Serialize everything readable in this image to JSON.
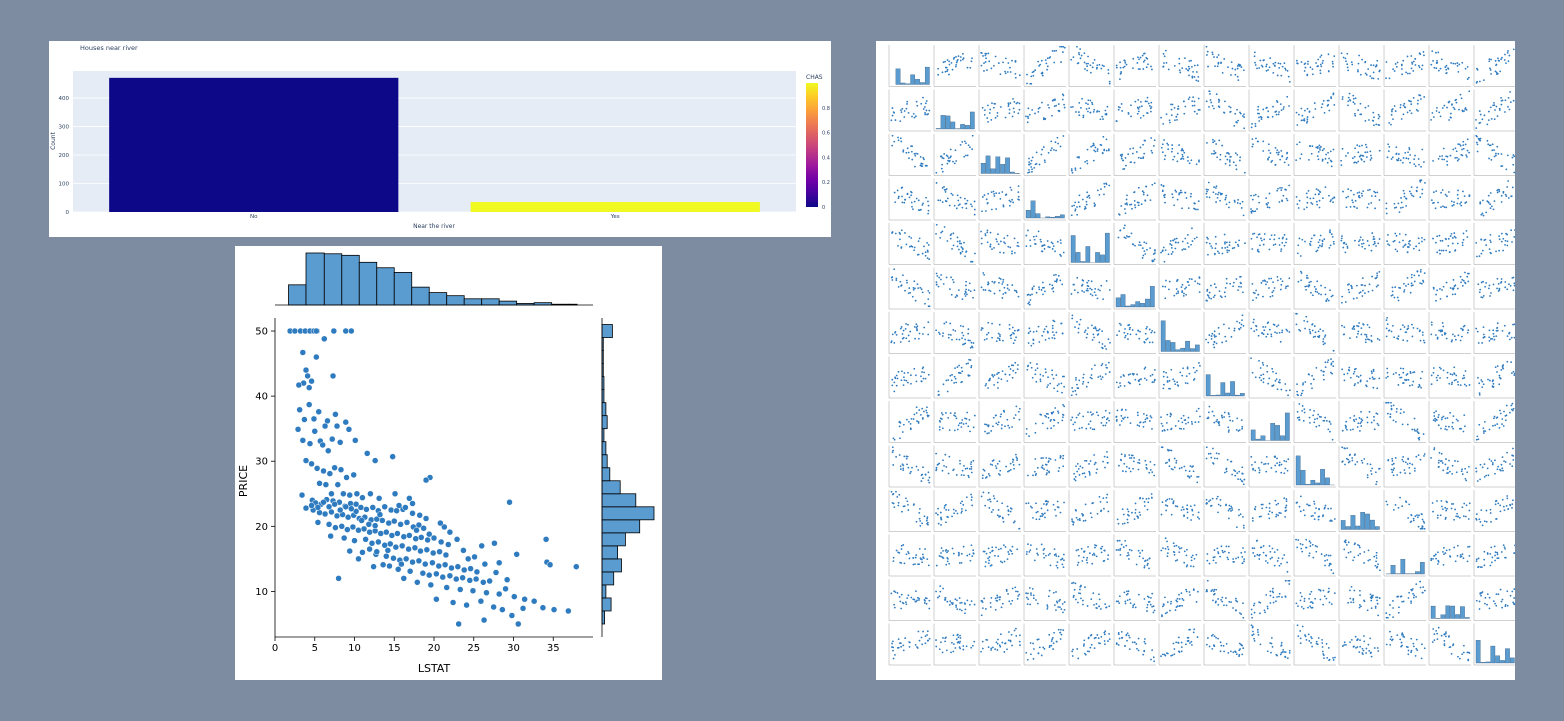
{
  "colors": {
    "page_background": "#7d8ca0",
    "bar_plot_background": "#e5ecf6",
    "bar_no": "#0d0887",
    "bar_yes": "#f0f921",
    "scatter_point": "#2f7bbf",
    "histogram_fill": "#5a9bd0"
  },
  "chart_data": [
    {
      "type": "bar",
      "title": "Houses near river",
      "xlabel": "Near the river",
      "ylabel": "Count",
      "categories": [
        "No",
        "Yes"
      ],
      "values": [
        471,
        35
      ],
      "color_values": [
        0,
        1
      ],
      "ylim": [
        0,
        495
      ],
      "yticks": [
        0,
        100,
        200,
        300,
        400
      ],
      "colorbar": {
        "title": "CHAS",
        "ticks": [
          "0",
          "0.2",
          "0.4",
          "0.6",
          "0.8"
        ],
        "range": [
          0,
          1
        ],
        "colorscale": [
          "#0d0887",
          "#46039f",
          "#7201a8",
          "#9c179e",
          "#bd3786",
          "#d8576b",
          "#ed7953",
          "#fb9f3a",
          "#fdca26",
          "#f0f921"
        ]
      },
      "grid": true,
      "legend": "colorbar right"
    },
    {
      "type": "scatter",
      "xlabel": "LSTAT",
      "ylabel": "PRICE",
      "xlim": [
        0,
        40
      ],
      "ylim": [
        3,
        52
      ],
      "xticks": [
        0,
        5,
        10,
        15,
        20,
        25,
        30,
        35
      ],
      "yticks": [
        10,
        20,
        30,
        40,
        50
      ],
      "grid": false,
      "points": [
        [
          1.9,
          50
        ],
        [
          2.5,
          50
        ],
        [
          3.2,
          50
        ],
        [
          3.8,
          50
        ],
        [
          4.4,
          50
        ],
        [
          4.9,
          50
        ],
        [
          5.3,
          50
        ],
        [
          6.2,
          48.8
        ],
        [
          7.4,
          50
        ],
        [
          8.9,
          50
        ],
        [
          9.6,
          50
        ],
        [
          5.2,
          50
        ],
        [
          3.5,
          46.7
        ],
        [
          3.9,
          44
        ],
        [
          4.1,
          43.1
        ],
        [
          3.6,
          42
        ],
        [
          3.0,
          41.7
        ],
        [
          4.3,
          41.3
        ],
        [
          4.6,
          42.3
        ],
        [
          7.3,
          43.1
        ],
        [
          7.6,
          37.2
        ],
        [
          5.2,
          46
        ],
        [
          6.6,
          36.2
        ],
        [
          7.8,
          35.4
        ],
        [
          3.1,
          37.9
        ],
        [
          3.7,
          36.4
        ],
        [
          4.3,
          38.7
        ],
        [
          4.9,
          36.5
        ],
        [
          5.5,
          37.6
        ],
        [
          6.3,
          35.4
        ],
        [
          2.9,
          34.9
        ],
        [
          3.5,
          33.2
        ],
        [
          4.4,
          32.7
        ],
        [
          5.0,
          34.6
        ],
        [
          5.7,
          33.1
        ],
        [
          6.0,
          32.5
        ],
        [
          6.7,
          31.6
        ],
        [
          7.2,
          33.4
        ],
        [
          8.2,
          32.9
        ],
        [
          8.9,
          36.0
        ],
        [
          9.3,
          34.9
        ],
        [
          10.1,
          33.2
        ],
        [
          3.9,
          30.1
        ],
        [
          4.6,
          29.6
        ],
        [
          5.3,
          28.9
        ],
        [
          6.1,
          28.5
        ],
        [
          6.9,
          28.1
        ],
        [
          7.5,
          29.0
        ],
        [
          8.3,
          28.7
        ],
        [
          9.0,
          27.5
        ],
        [
          9.9,
          27.9
        ],
        [
          11.6,
          31.2
        ],
        [
          12.6,
          30.1
        ],
        [
          14.8,
          30.7
        ],
        [
          19.5,
          27.5
        ],
        [
          19.0,
          27.1
        ],
        [
          5.6,
          26.6
        ],
        [
          6.4,
          26.4
        ],
        [
          7.1,
          25.0
        ],
        [
          7.9,
          26.4
        ],
        [
          8.6,
          25.0
        ],
        [
          9.4,
          24.8
        ],
        [
          10.3,
          25.0
        ],
        [
          11.0,
          24.4
        ],
        [
          12.0,
          25.0
        ],
        [
          13.1,
          24.3
        ],
        [
          3.4,
          24.8
        ],
        [
          4.7,
          24.0
        ],
        [
          5.1,
          23.6
        ],
        [
          5.8,
          23.4
        ],
        [
          6.5,
          24.1
        ],
        [
          7.3,
          23.9
        ],
        [
          8.1,
          23.7
        ],
        [
          8.8,
          23.1
        ],
        [
          9.5,
          23.5
        ],
        [
          10.2,
          23.4
        ],
        [
          10.8,
          22.9
        ],
        [
          11.5,
          22.6
        ],
        [
          12.3,
          22.9
        ],
        [
          13.0,
          22.4
        ],
        [
          13.8,
          23.0
        ],
        [
          14.6,
          22.5
        ],
        [
          15.3,
          22.4
        ],
        [
          16.1,
          22.6
        ],
        [
          4.8,
          22.5
        ],
        [
          5.6,
          22.1
        ],
        [
          6.3,
          21.9
        ],
        [
          7.1,
          22.2
        ],
        [
          7.8,
          21.6
        ],
        [
          8.5,
          21.8
        ],
        [
          9.2,
          21.4
        ],
        [
          9.9,
          21.7
        ],
        [
          10.6,
          21.2
        ],
        [
          11.3,
          21.4
        ],
        [
          12.1,
          21.0
        ],
        [
          12.8,
          21.1
        ],
        [
          13.5,
          20.9
        ],
        [
          14.3,
          20.5
        ],
        [
          15.0,
          20.8
        ],
        [
          15.8,
          20.3
        ],
        [
          16.6,
          20.6
        ],
        [
          17.4,
          19.9
        ],
        [
          18.1,
          20.2
        ],
        [
          5.4,
          20.6
        ],
        [
          6.8,
          20.3
        ],
        [
          7.6,
          19.8
        ],
        [
          8.4,
          20.0
        ],
        [
          9.1,
          19.5
        ],
        [
          9.8,
          19.9
        ],
        [
          10.5,
          19.4
        ],
        [
          11.2,
          19.6
        ],
        [
          11.9,
          19.1
        ],
        [
          12.6,
          19.3
        ],
        [
          13.3,
          18.9
        ],
        [
          14.0,
          19.1
        ],
        [
          14.7,
          18.6
        ],
        [
          15.4,
          18.9
        ],
        [
          16.2,
          18.4
        ],
        [
          16.9,
          18.6
        ],
        [
          17.7,
          18.1
        ],
        [
          18.4,
          18.3
        ],
        [
          19.2,
          17.9
        ],
        [
          20.0,
          18.2
        ],
        [
          7.0,
          18.5
        ],
        [
          8.7,
          18.2
        ],
        [
          10.0,
          17.8
        ],
        [
          11.4,
          18.0
        ],
        [
          12.2,
          17.4
        ],
        [
          13.0,
          17.6
        ],
        [
          13.8,
          17.1
        ],
        [
          14.5,
          17.3
        ],
        [
          15.2,
          16.8
        ],
        [
          16.0,
          17.0
        ],
        [
          16.8,
          16.5
        ],
        [
          17.6,
          16.7
        ],
        [
          18.3,
          16.2
        ],
        [
          19.1,
          16.4
        ],
        [
          19.9,
          15.9
        ],
        [
          20.7,
          16.1
        ],
        [
          21.5,
          15.6
        ],
        [
          9.4,
          16.2
        ],
        [
          11.0,
          16.0
        ],
        [
          12.7,
          15.7
        ],
        [
          14.0,
          15.4
        ],
        [
          14.9,
          15.1
        ],
        [
          15.7,
          14.8
        ],
        [
          16.5,
          15.0
        ],
        [
          17.3,
          14.5
        ],
        [
          18.1,
          14.7
        ],
        [
          18.9,
          14.2
        ],
        [
          19.8,
          14.4
        ],
        [
          20.6,
          13.9
        ],
        [
          21.4,
          14.1
        ],
        [
          22.2,
          13.6
        ],
        [
          23.0,
          13.8
        ],
        [
          23.8,
          13.3
        ],
        [
          24.6,
          13.5
        ],
        [
          25.4,
          13.0
        ],
        [
          12.4,
          13.8
        ],
        [
          15.5,
          13.4
        ],
        [
          17.0,
          13.1
        ],
        [
          18.6,
          12.8
        ],
        [
          19.4,
          12.5
        ],
        [
          20.3,
          12.7
        ],
        [
          21.1,
          12.2
        ],
        [
          22.0,
          12.4
        ],
        [
          22.8,
          11.9
        ],
        [
          23.6,
          12.1
        ],
        [
          24.5,
          11.7
        ],
        [
          25.3,
          11.9
        ],
        [
          26.2,
          11.4
        ],
        [
          27.0,
          11.6
        ],
        [
          16.2,
          12.0
        ],
        [
          17.9,
          11.4
        ],
        [
          19.6,
          11.0
        ],
        [
          21.6,
          10.6
        ],
        [
          23.3,
          10.3
        ],
        [
          24.9,
          10.1
        ],
        [
          26.6,
          9.8
        ],
        [
          28.2,
          9.6
        ],
        [
          29.0,
          10.4
        ],
        [
          30.1,
          9.2
        ],
        [
          31.4,
          8.8
        ],
        [
          32.6,
          8.5
        ],
        [
          33.7,
          7.5
        ],
        [
          35.1,
          7.2
        ],
        [
          36.9,
          7.0
        ],
        [
          20.3,
          8.8
        ],
        [
          22.4,
          8.3
        ],
        [
          24.1,
          7.9
        ],
        [
          25.9,
          8.5
        ],
        [
          27.5,
          7.6
        ],
        [
          29.8,
          6.3
        ],
        [
          30.6,
          5.0
        ],
        [
          23.1,
          5.0
        ],
        [
          26.3,
          5.6
        ],
        [
          28.6,
          7.2
        ],
        [
          31.2,
          7.4
        ],
        [
          34.2,
          14.5
        ],
        [
          34.6,
          14.1
        ],
        [
          34.1,
          18.0
        ],
        [
          37.9,
          13.8
        ],
        [
          29.5,
          23.7
        ],
        [
          30.4,
          15.7
        ],
        [
          28.2,
          14.4
        ],
        [
          27.6,
          17.4
        ],
        [
          26.0,
          17.0
        ],
        [
          22.9,
          18.0
        ],
        [
          22.0,
          19.1
        ],
        [
          21.3,
          19.9
        ],
        [
          20.8,
          20.5
        ],
        [
          24.3,
          15.0
        ],
        [
          19.0,
          21.2
        ],
        [
          18.2,
          21.7
        ],
        [
          17.3,
          22.0
        ],
        [
          16.4,
          22.9
        ],
        [
          15.6,
          23.2
        ],
        [
          12.6,
          20.1
        ],
        [
          11.8,
          20.3
        ],
        [
          10.9,
          20.9
        ],
        [
          10.2,
          22.3
        ],
        [
          9.6,
          22.7
        ],
        [
          8.9,
          23.0
        ],
        [
          8.2,
          22.5
        ],
        [
          7.5,
          23.4
        ],
        [
          6.8,
          23.0
        ],
        [
          6.1,
          23.7
        ],
        [
          5.4,
          22.9
        ],
        [
          4.6,
          23.2
        ],
        [
          3.9,
          22.8
        ],
        [
          8.0,
          12.0
        ],
        [
          10.5,
          15.0
        ],
        [
          13.6,
          14.1
        ],
        [
          14.4,
          13.9
        ],
        [
          15.9,
          14.2
        ],
        [
          12.8,
          16.1
        ],
        [
          11.9,
          16.5
        ],
        [
          14.2,
          16.3
        ],
        [
          13.2,
          21.8
        ],
        [
          17.8,
          19.4
        ],
        [
          18.7,
          19.7
        ],
        [
          19.4,
          18.8
        ],
        [
          20.9,
          17.6
        ],
        [
          21.8,
          17.2
        ],
        [
          23.7,
          16.3
        ],
        [
          25.1,
          15.3
        ],
        [
          26.4,
          14.2
        ],
        [
          27.8,
          12.9
        ],
        [
          29.2,
          11.8
        ],
        [
          16.9,
          24.3
        ],
        [
          15.1,
          25.0
        ],
        [
          17.3,
          23.5
        ]
      ],
      "marginal_x": {
        "bin_edges": [
          1.7,
          3.9,
          6.2,
          8.4,
          10.6,
          12.8,
          15.0,
          17.2,
          19.4,
          21.6,
          23.8,
          26.0,
          28.2,
          30.4,
          32.6,
          34.8,
          37.0,
          38.0
        ],
        "counts": [
          26,
          67,
          66,
          64,
          55,
          48,
          42,
          23,
          16,
          12,
          8,
          8,
          5,
          2,
          3,
          1,
          1
        ]
      },
      "marginal_y": {
        "bin_edges": [
          5,
          7,
          9,
          11,
          13,
          15,
          17,
          19,
          21,
          23,
          25,
          27,
          29,
          31,
          33,
          35,
          37,
          39,
          41,
          43,
          45,
          47,
          49,
          51
        ],
        "counts": [
          4,
          14,
          6,
          18,
          30,
          24,
          36,
          58,
          80,
          52,
          28,
          12,
          8,
          6,
          3,
          8,
          6,
          3,
          3,
          2,
          2,
          2,
          16
        ]
      }
    },
    {
      "type": "scatter",
      "subtype": "pairplot-grid",
      "rows": 14,
      "cols": 14,
      "diagonal": "histogram"
    }
  ]
}
